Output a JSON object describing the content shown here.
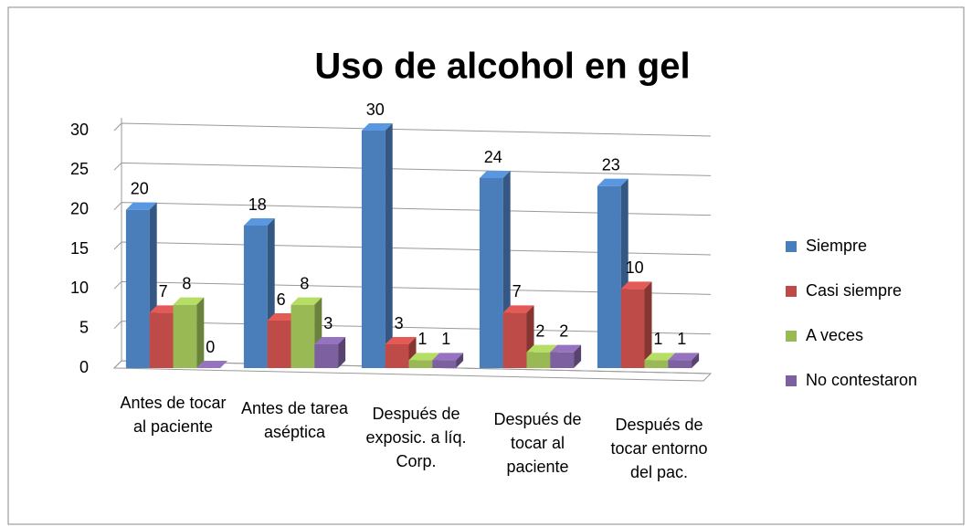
{
  "chart_data": {
    "type": "bar",
    "title": "Uso de alcohol en gel",
    "categories": [
      "Antes de tocar al paciente",
      "Antes de tarea aséptica",
      "Después de exposic. a líq. Corp.",
      "Después de tocar al paciente",
      "Después de tocar entorno del pac."
    ],
    "series": [
      {
        "name": "Siempre",
        "color": "#4a7ebb",
        "values": [
          20,
          18,
          30,
          24,
          23
        ]
      },
      {
        "name": "Casi siempre",
        "color": "#be4b48",
        "values": [
          7,
          6,
          3,
          7,
          10
        ]
      },
      {
        "name": "A veces",
        "color": "#98b954",
        "values": [
          8,
          8,
          1,
          2,
          1
        ]
      },
      {
        "name": "No contestaron",
        "color": "#7d60a0",
        "values": [
          0,
          3,
          1,
          2,
          1
        ]
      }
    ],
    "ylim": [
      0,
      30
    ],
    "yticks": [
      0,
      5,
      10,
      15,
      20,
      25,
      30
    ],
    "grid": true,
    "legend": "right"
  }
}
